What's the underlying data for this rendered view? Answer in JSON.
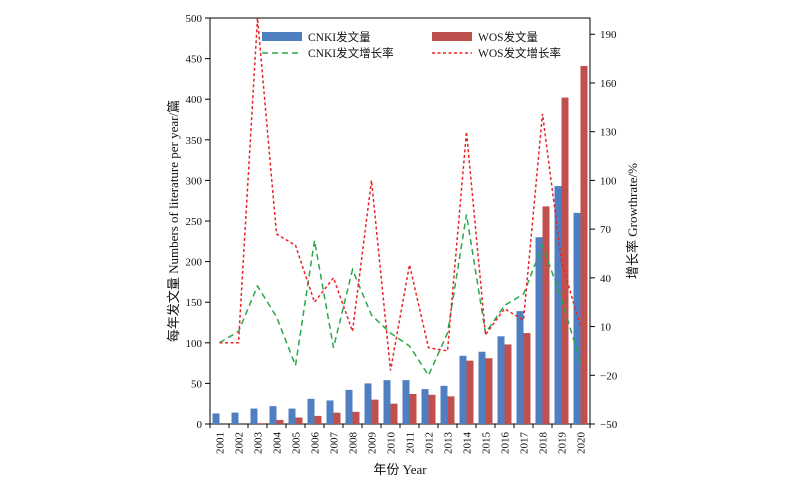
{
  "chart_data": {
    "type": "bar",
    "categories": [
      "2001",
      "2002",
      "2003",
      "2004",
      "2005",
      "2006",
      "2007",
      "2008",
      "2009",
      "2010",
      "2011",
      "2012",
      "2013",
      "2014",
      "2015",
      "2016",
      "2017",
      "2018",
      "2019",
      "2020"
    ],
    "xlabel": "年份 Year",
    "ylabel": "每年发文量 Numbers of literature per year/篇",
    "y2label": "增长率 Growthrate/%",
    "ylim": [
      0,
      500
    ],
    "y2lim": [
      -50,
      200
    ],
    "yticks": [
      "0",
      "50",
      "100",
      "150",
      "200",
      "250",
      "300",
      "350",
      "400",
      "450",
      "500"
    ],
    "y2ticks": [
      "−50",
      "−20",
      "10",
      "40",
      "70",
      "100",
      "130",
      "160",
      "190"
    ],
    "legend_position": "top",
    "series": [
      {
        "name": "CNKI发文量",
        "kind": "bar",
        "axis": "left",
        "color": "#4f7fc0",
        "values": [
          13,
          14,
          19,
          22,
          19,
          31,
          29,
          42,
          50,
          54,
          54,
          43,
          47,
          84,
          89,
          108,
          139,
          230,
          293,
          260
        ]
      },
      {
        "name": "WOS发文量",
        "kind": "bar",
        "axis": "left",
        "color": "#c0504d",
        "values": [
          0,
          0,
          1,
          5,
          8,
          10,
          14,
          15,
          30,
          25,
          37,
          36,
          34,
          78,
          81,
          98,
          112,
          268,
          402,
          441
        ]
      },
      {
        "name": "CNKI发文增长率",
        "kind": "line",
        "axis": "right",
        "color": "#2aa84a",
        "dash": "dash",
        "values": [
          0,
          7,
          35,
          16,
          -14,
          63,
          -3,
          45,
          17,
          6,
          -2,
          -20,
          6,
          79,
          6,
          23,
          30,
          60,
          27,
          -12
        ]
      },
      {
        "name": "WOS发文增长率",
        "kind": "line",
        "axis": "right",
        "color": "#e8262a",
        "dash": "dot",
        "values": [
          0,
          0,
          200,
          67,
          60,
          25,
          40,
          7,
          100,
          -17,
          48,
          -3,
          -5,
          130,
          5,
          21,
          14,
          141,
          50,
          10
        ]
      }
    ]
  }
}
